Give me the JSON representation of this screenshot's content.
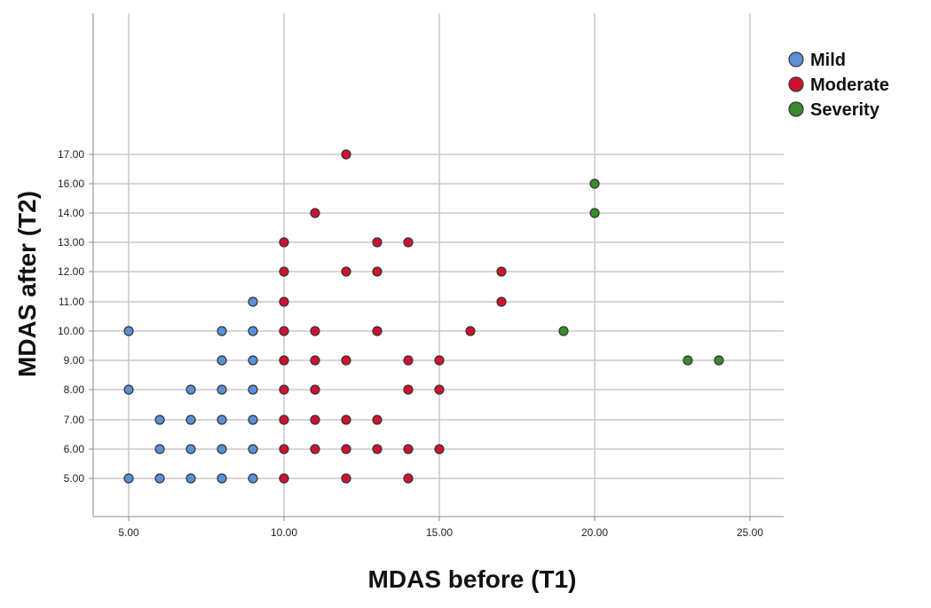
{
  "chart_data": {
    "type": "scatter",
    "title": "",
    "xlabel": "MDAS before (T1)",
    "ylabel": "MDAS after (T2)",
    "xlim": [
      4,
      26
    ],
    "x_ticks": [
      "5.00",
      "10.00",
      "15.00",
      "20.00",
      "25.00"
    ],
    "x_tick_values": [
      5,
      10,
      15,
      20,
      25
    ],
    "y_ticks": [
      "5.00",
      "6.00",
      "7.00",
      "8.00",
      "9.00",
      "10.00",
      "11.00",
      "12.00",
      "13.00",
      "14.00",
      "16.00",
      "17.00"
    ],
    "grid": true,
    "legend_position": "top-right",
    "series": [
      {
        "name": "Mild",
        "color": "#5b8fd6",
        "points": [
          [
            5,
            5
          ],
          [
            5,
            8
          ],
          [
            5,
            10
          ],
          [
            6,
            5
          ],
          [
            6,
            6
          ],
          [
            6,
            7
          ],
          [
            7,
            5
          ],
          [
            7,
            6
          ],
          [
            7,
            7
          ],
          [
            7,
            8
          ],
          [
            8,
            5
          ],
          [
            8,
            6
          ],
          [
            8,
            7
          ],
          [
            8,
            8
          ],
          [
            8,
            9
          ],
          [
            8,
            10
          ],
          [
            9,
            5
          ],
          [
            9,
            6
          ],
          [
            9,
            7
          ],
          [
            9,
            8
          ],
          [
            9,
            9
          ],
          [
            9,
            10
          ],
          [
            9,
            11
          ]
        ]
      },
      {
        "name": "Moderate",
        "color": "#d0122e",
        "points": [
          [
            10,
            5
          ],
          [
            10,
            6
          ],
          [
            10,
            7
          ],
          [
            10,
            8
          ],
          [
            10,
            9
          ],
          [
            10,
            10
          ],
          [
            10,
            11
          ],
          [
            10,
            12
          ],
          [
            10,
            13
          ],
          [
            11,
            6
          ],
          [
            11,
            7
          ],
          [
            11,
            8
          ],
          [
            11,
            9
          ],
          [
            11,
            10
          ],
          [
            11,
            14
          ],
          [
            12,
            5
          ],
          [
            12,
            6
          ],
          [
            12,
            7
          ],
          [
            12,
            9
          ],
          [
            12,
            12
          ],
          [
            12,
            17
          ],
          [
            13,
            6
          ],
          [
            13,
            7
          ],
          [
            13,
            10
          ],
          [
            13,
            12
          ],
          [
            13,
            13
          ],
          [
            14,
            5
          ],
          [
            14,
            6
          ],
          [
            14,
            8
          ],
          [
            14,
            9
          ],
          [
            14,
            13
          ],
          [
            15,
            6
          ],
          [
            15,
            8
          ],
          [
            15,
            9
          ],
          [
            16,
            10
          ],
          [
            17,
            11
          ],
          [
            17,
            12
          ]
        ]
      },
      {
        "name": "Severity",
        "color": "#3a8a2e",
        "points": [
          [
            19,
            10
          ],
          [
            20,
            14
          ],
          [
            20,
            16
          ],
          [
            23,
            9
          ],
          [
            24,
            9
          ]
        ]
      }
    ]
  }
}
